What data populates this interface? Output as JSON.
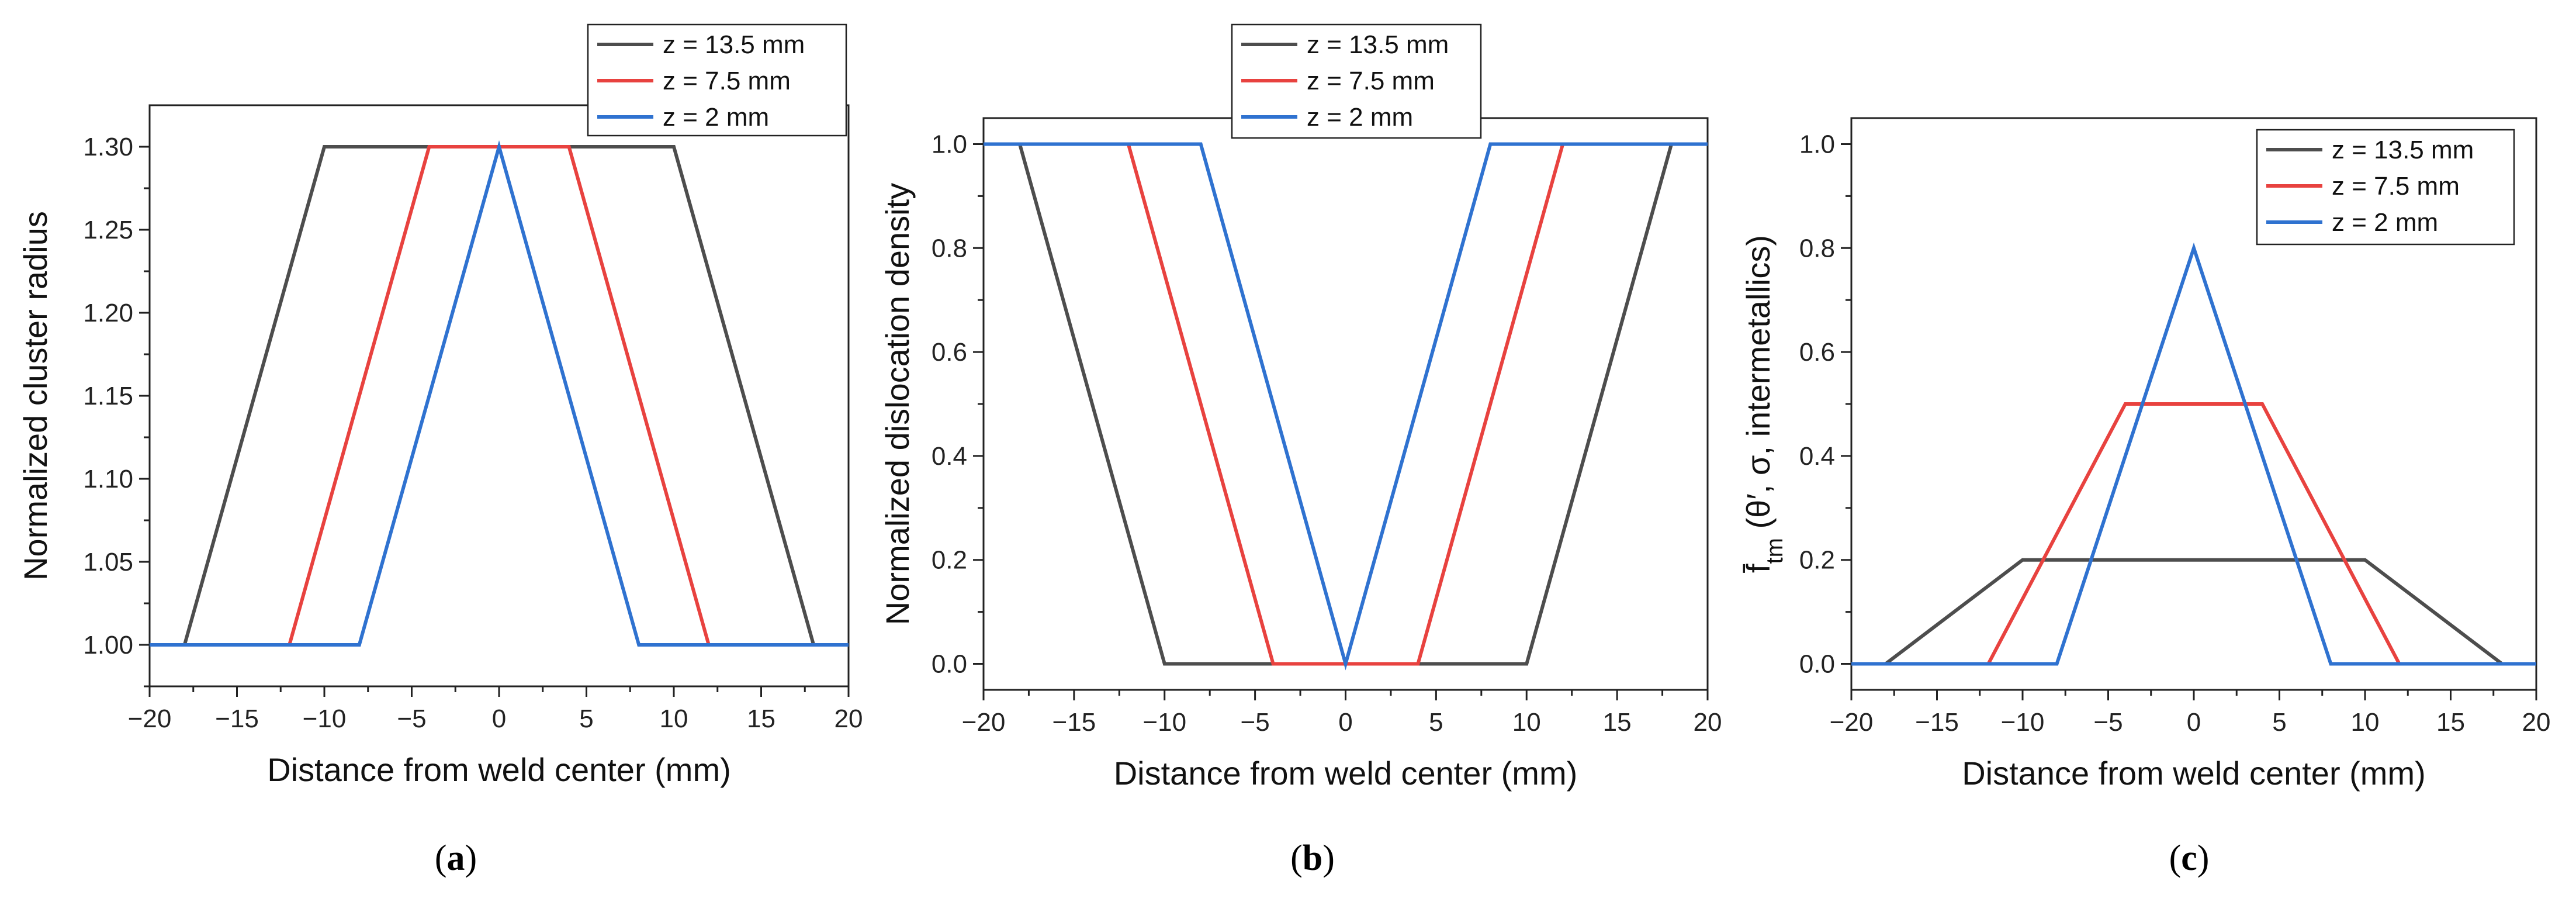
{
  "chart_data": [
    {
      "type": "line",
      "panel": "a",
      "caption": "(a)",
      "xlabel": "Distance from weld center (mm)",
      "ylabel": "Normalized cluster radius",
      "xlim": [
        -20,
        20
      ],
      "ylim": [
        0.975,
        1.325
      ],
      "xticks": [
        "−20",
        "−15",
        "−10",
        "−5",
        "0",
        "5",
        "10",
        "15",
        "20"
      ],
      "xtick_values": [
        -20,
        -15,
        -10,
        -5,
        0,
        5,
        10,
        15,
        20
      ],
      "yticks": [
        "1.00",
        "1.05",
        "1.10",
        "1.15",
        "1.20",
        "1.25",
        "1.30"
      ],
      "ytick_values": [
        1.0,
        1.05,
        1.1,
        1.15,
        1.2,
        1.25,
        1.3
      ],
      "legend_position": "top-right-outside",
      "series": [
        {
          "name": "z = 13.5 mm",
          "color": "#4d4d4d",
          "x": [
            -20,
            -18,
            -10,
            10,
            18,
            20
          ],
          "y": [
            1.0,
            1.0,
            1.3,
            1.3,
            1.0,
            1.0
          ]
        },
        {
          "name": "z = 7.5 mm",
          "color": "#e8423f",
          "x": [
            -20,
            -12,
            -4,
            4,
            12,
            20
          ],
          "y": [
            1.0,
            1.0,
            1.3,
            1.3,
            1.0,
            1.0
          ]
        },
        {
          "name": "z = 2 mm",
          "color": "#2f72d0",
          "x": [
            -20,
            -8,
            0,
            8,
            20
          ],
          "y": [
            1.0,
            1.0,
            1.3,
            1.0,
            1.0
          ]
        }
      ]
    },
    {
      "type": "line",
      "panel": "b",
      "caption": "(b)",
      "xlabel": "Distance from weld center (mm)",
      "ylabel": "Normalized dislocation density",
      "xlim": [
        -20,
        20
      ],
      "ylim": [
        -0.05,
        1.05
      ],
      "xticks": [
        "−20",
        "−15",
        "−10",
        "−5",
        "0",
        "5",
        "10",
        "15",
        "20"
      ],
      "xtick_values": [
        -20,
        -15,
        -10,
        -5,
        0,
        5,
        10,
        15,
        20
      ],
      "yticks": [
        "0.0",
        "0.2",
        "0.4",
        "0.6",
        "0.8",
        "1.0"
      ],
      "ytick_values": [
        0,
        0.2,
        0.4,
        0.6,
        0.8,
        1.0
      ],
      "legend_position": "top-center-outside",
      "series": [
        {
          "name": "z = 13.5 mm",
          "color": "#4d4d4d",
          "x": [
            -20,
            -18,
            -10,
            10,
            18,
            20
          ],
          "y": [
            1,
            1,
            0,
            0,
            1,
            1
          ]
        },
        {
          "name": "z = 7.5 mm",
          "color": "#e8423f",
          "x": [
            -20,
            -12,
            -4,
            4,
            12,
            20
          ],
          "y": [
            1,
            1,
            0,
            0,
            1,
            1
          ]
        },
        {
          "name": "z = 2 mm",
          "color": "#2f72d0",
          "x": [
            -20,
            -8,
            0,
            8,
            20
          ],
          "y": [
            1,
            1,
            0,
            1,
            1
          ]
        }
      ]
    },
    {
      "type": "line",
      "panel": "c",
      "caption": "(c)",
      "xlabel": "Distance from weld center (mm)",
      "ylabel_main": "f̄",
      "ylabel_sub": "tm",
      "ylabel_rest": " (θ′, σ, intermetallics)",
      "xlim": [
        -20,
        20
      ],
      "ylim": [
        -0.05,
        1.05
      ],
      "xticks": [
        "−20",
        "−15",
        "−10",
        "−5",
        "0",
        "5",
        "10",
        "15",
        "20"
      ],
      "xtick_values": [
        -20,
        -15,
        -10,
        -5,
        0,
        5,
        10,
        15,
        20
      ],
      "yticks": [
        "0.0",
        "0.2",
        "0.4",
        "0.6",
        "0.8",
        "1.0"
      ],
      "ytick_values": [
        0,
        0.2,
        0.4,
        0.6,
        0.8,
        1.0
      ],
      "legend_position": "top-right-inside",
      "series": [
        {
          "name": "z = 13.5 mm",
          "color": "#4d4d4d",
          "x": [
            -20,
            -18,
            -10,
            10,
            18,
            20
          ],
          "y": [
            0,
            0,
            0.2,
            0.2,
            0,
            0
          ]
        },
        {
          "name": "z = 7.5 mm",
          "color": "#e8423f",
          "x": [
            -20,
            -12,
            -4,
            4,
            12,
            20
          ],
          "y": [
            0,
            0,
            0.5,
            0.5,
            0,
            0
          ]
        },
        {
          "name": "z = 2 mm",
          "color": "#2f72d0",
          "x": [
            -20,
            -8,
            0,
            8,
            20
          ],
          "y": [
            0,
            0,
            0.8,
            0,
            0
          ]
        }
      ]
    }
  ]
}
